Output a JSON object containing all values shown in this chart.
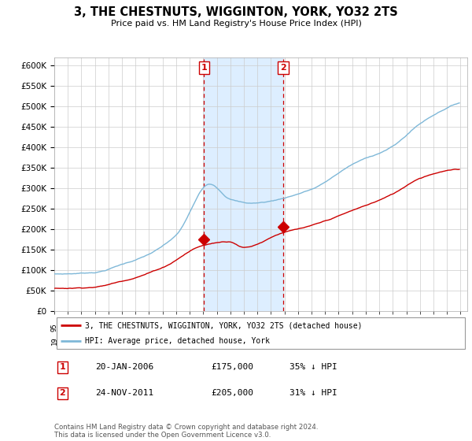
{
  "title": "3, THE CHESTNUTS, WIGGINTON, YORK, YO32 2TS",
  "subtitle": "Price paid vs. HM Land Registry's House Price Index (HPI)",
  "legend_line1": "3, THE CHESTNUTS, WIGGINTON, YORK, YO32 2TS (detached house)",
  "legend_line2": "HPI: Average price, detached house, York",
  "sale1_date": "20-JAN-2006",
  "sale1_price": "£175,000",
  "sale1_pct": "35% ↓ HPI",
  "sale2_date": "24-NOV-2011",
  "sale2_price": "£205,000",
  "sale2_pct": "31% ↓ HPI",
  "footnote": "Contains HM Land Registry data © Crown copyright and database right 2024.\nThis data is licensed under the Open Government Licence v3.0.",
  "hpi_color": "#7fb8d8",
  "sold_color": "#cc0000",
  "background_color": "#ffffff",
  "grid_color": "#cccccc",
  "shade_color": "#ddeeff",
  "vline_color": "#cc0000",
  "ylim": [
    0,
    620000
  ],
  "yticks": [
    0,
    50000,
    100000,
    150000,
    200000,
    250000,
    300000,
    350000,
    400000,
    450000,
    500000,
    550000,
    600000
  ],
  "sale1_x": 2006.05,
  "sale1_y": 175000,
  "sale2_x": 2011.9,
  "sale2_y": 205000,
  "xmin": 1995.0,
  "xmax": 2025.5
}
